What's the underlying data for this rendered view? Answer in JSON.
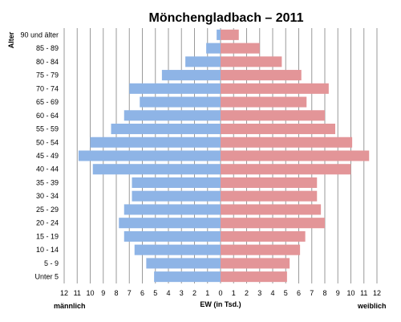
{
  "chart_data": {
    "type": "bar",
    "title": "Mönchengladbach – 2011",
    "ylabel": "Alter",
    "xlabel": "EW (in Tsd.)",
    "left_label": "männlich",
    "right_label": "weiblich",
    "categories": [
      "90 und älter",
      "85 - 89",
      "80 - 84",
      "75 - 79",
      "70 - 74",
      "65 - 69",
      "60 - 64",
      "55 - 59",
      "50 - 54",
      "45 - 49",
      "40 - 44",
      "35 - 39",
      "30 - 34",
      "25 - 29",
      "20 - 24",
      "15 - 19",
      "10 - 14",
      "5 - 9",
      "Unter 5"
    ],
    "series": [
      {
        "name": "männlich",
        "color": "#8EB4E6",
        "values": [
          0.3,
          1.1,
          2.7,
          4.5,
          7.0,
          6.2,
          7.4,
          8.4,
          10.0,
          10.9,
          9.8,
          6.8,
          6.8,
          7.4,
          7.8,
          7.4,
          6.6,
          5.7,
          5.1
        ]
      },
      {
        "name": "weiblich",
        "color": "#E39598",
        "values": [
          1.4,
          3.0,
          4.7,
          6.2,
          8.3,
          6.6,
          8.0,
          8.8,
          10.1,
          11.4,
          10.0,
          7.4,
          7.4,
          7.7,
          8.0,
          6.5,
          6.1,
          5.3,
          5.1
        ]
      }
    ],
    "xlim": [
      -12,
      12
    ],
    "xticks": [
      "12",
      "11",
      "10",
      "9",
      "8",
      "7",
      "6",
      "5",
      "4",
      "3",
      "2",
      "1",
      "0",
      "1",
      "2",
      "3",
      "4",
      "5",
      "6",
      "7",
      "8",
      "9",
      "10",
      "11",
      "12"
    ],
    "grid": true
  }
}
